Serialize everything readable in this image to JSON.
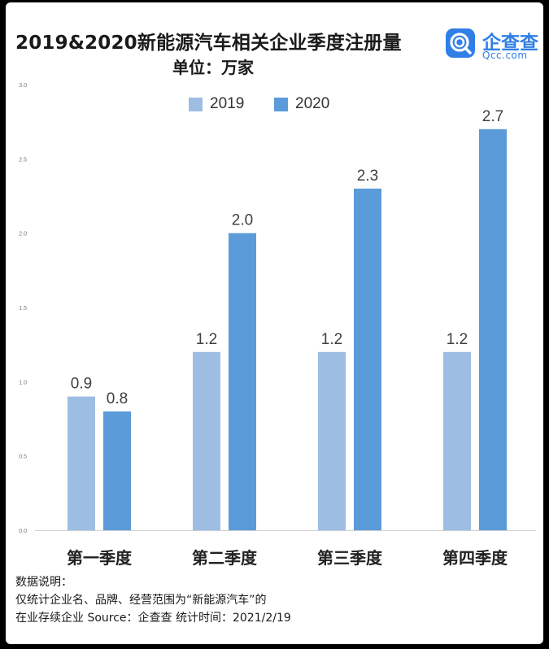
{
  "title": "2019&2020新能源汽车相关企业季度注册量",
  "unit": "单位：万家",
  "logo": {
    "name_cn": "企查查",
    "name_en": "Qcc.com",
    "icon": "qcc-logo-icon"
  },
  "notes": {
    "heading": "数据说明：",
    "line1": "仅统计企业名、品牌、经营范围为“新能源汽车”的",
    "line2": "在业存续企业   Source：企查查    统计时间：2021/2/19"
  },
  "chart_data": {
    "type": "bar",
    "categories": [
      "第一季度",
      "第二季度",
      "第三季度",
      "第四季度"
    ],
    "series": [
      {
        "name": "2019",
        "values": [
          0.9,
          1.2,
          1.2,
          1.2
        ],
        "color": "#9dbde3"
      },
      {
        "name": "2020",
        "values": [
          0.8,
          2.0,
          2.3,
          2.7
        ],
        "color": "#5b9bd9"
      }
    ],
    "ylim": [
      0,
      3.0
    ],
    "yticks": [
      "0.0",
      "0.5",
      "1.0",
      "1.5",
      "2.0",
      "2.5",
      "3.0"
    ],
    "legend": "top-center",
    "grid": false
  }
}
